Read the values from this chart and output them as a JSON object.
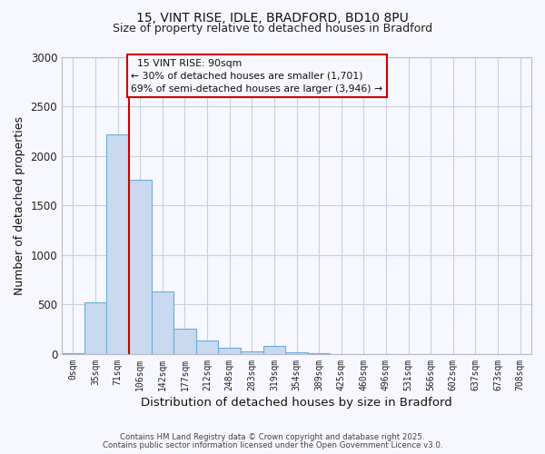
{
  "title_line1": "15, VINT RISE, IDLE, BRADFORD, BD10 8PU",
  "title_line2": "Size of property relative to detached houses in Bradford",
  "xlabel": "Distribution of detached houses by size in Bradford",
  "ylabel": "Number of detached properties",
  "bar_labels": [
    "0sqm",
    "35sqm",
    "71sqm",
    "106sqm",
    "142sqm",
    "177sqm",
    "212sqm",
    "248sqm",
    "283sqm",
    "319sqm",
    "354sqm",
    "389sqm",
    "425sqm",
    "460sqm",
    "496sqm",
    "531sqm",
    "566sqm",
    "602sqm",
    "637sqm",
    "673sqm",
    "708sqm"
  ],
  "bar_heights": [
    5,
    520,
    2220,
    1760,
    635,
    260,
    140,
    65,
    30,
    80,
    15,
    5,
    0,
    0,
    0,
    0,
    0,
    0,
    0,
    0,
    0
  ],
  "bar_color": "#c9d9f0",
  "bar_edge_color": "#6baed6",
  "ylim": [
    0,
    3000
  ],
  "yticks": [
    0,
    500,
    1000,
    1500,
    2000,
    2500,
    3000
  ],
  "vline_x_idx": 2,
  "vline_color": "#cc0000",
  "annotation_title": "15 VINT RISE: 90sqm",
  "annotation_line2": "← 30% of detached houses are smaller (1,701)",
  "annotation_line3": "69% of semi-detached houses are larger (3,946) →",
  "annotation_box_color": "#cc0000",
  "footer_line1": "Contains HM Land Registry data © Crown copyright and database right 2025.",
  "footer_line2": "Contains public sector information licensed under the Open Government Licence v3.0.",
  "bg_color": "#f7f7ff",
  "grid_color": "#c8d0e0"
}
